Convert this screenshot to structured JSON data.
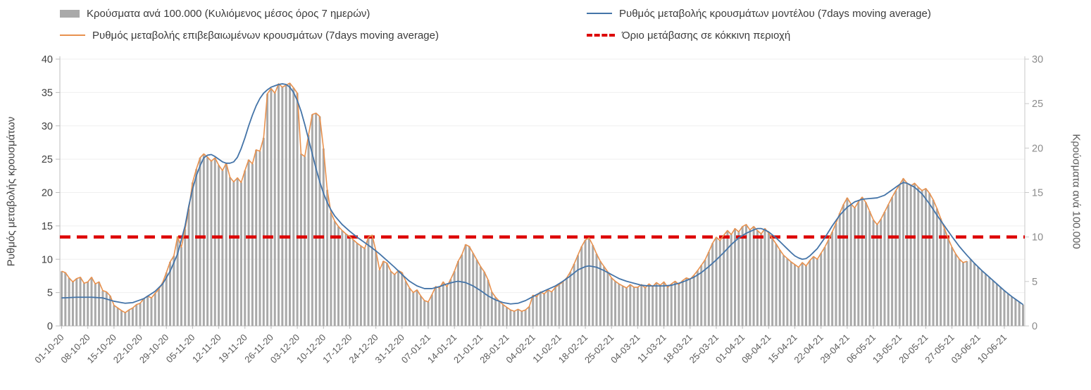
{
  "legend": {
    "items": [
      {
        "id": "bars",
        "label": "Κρούσματα ανά 100.000 (Κυλιόμενος μέσος όρος 7 ημερών)",
        "swatch": "bar",
        "color": "#a9a9a9"
      },
      {
        "id": "model",
        "label": "Ρυθμός μεταβολής κρουσμάτων μοντέλου (7days moving average)",
        "swatch": "line",
        "color": "#4474a8"
      },
      {
        "id": "confirmed",
        "label": "Ρυθμός μεταβολής επιβεβαιωμένων κρουσμάτων (7days moving average)",
        "swatch": "line",
        "color": "#e8914e"
      },
      {
        "id": "threshold",
        "label": "Όριο μετάβασης σε κόκκινη περιοχή",
        "swatch": "dash",
        "color": "#dd0000"
      }
    ]
  },
  "chart_data": {
    "type": "combo-bar-line",
    "grid": "horizontal-faint",
    "left_axis": {
      "label": "Ρυθμός μεταβολής κρουσμάτων",
      "min": 0,
      "max": 40,
      "ticks": [
        0,
        5,
        10,
        15,
        20,
        25,
        30,
        35,
        40
      ]
    },
    "right_axis": {
      "label": "Κρούσματα ανά 100.000",
      "min": 0,
      "max": 30,
      "ticks": [
        0,
        5,
        10,
        15,
        20,
        25,
        30
      ]
    },
    "x_axis": {
      "unit": "days since 01-10-2020",
      "max_day": 257,
      "tick_step_days": 7,
      "tick_labels": [
        "01-10-20",
        "08-10-20",
        "15-10-20",
        "22-10-20",
        "29-10-20",
        "05-11-20",
        "12-11-20",
        "19-11-20",
        "26-11-20",
        "03-12-20",
        "10-12-20",
        "17-12-20",
        "24-12-20",
        "31-12-20",
        "07-01-21",
        "14-01-21",
        "21-01-21",
        "28-01-21",
        "04-02-21",
        "11-02-21",
        "18-02-21",
        "25-02-21",
        "04-03-21",
        "11-03-21",
        "18-03-21",
        "25-03-21",
        "01-04-21",
        "08-04-21",
        "15-04-21",
        "22-04-21",
        "29-04-21",
        "06-05-21",
        "13-05-21",
        "20-05-21",
        "27-05-21",
        "03-06-21",
        "10-06-21"
      ]
    },
    "threshold": {
      "label": "Όριο μετάβασης σε κόκκινη περιοχή",
      "axis": "right",
      "value": 10,
      "color": "#dd0000"
    },
    "series": [
      {
        "id": "bars",
        "name": "Κρούσματα ανά 100.000 (Κυλιόμενος μέσος όρος 7 ημερών)",
        "type": "bar",
        "axis": "right",
        "color": "#a9a9a9",
        "derive": {
          "note": "bar heights coincide with the confirmed-rate curve rescaled to the right axis, continuing along the model curve after the confirmed series ends",
          "sources": [
            "confirmed",
            "model"
          ],
          "switch_day": 242,
          "scale": 0.75
        }
      },
      {
        "id": "confirmed",
        "name": "Ρυθμός μεταβολής επιβεβαιωμένων κρουσμάτων (7days moving average)",
        "type": "line",
        "axis": "left",
        "color": "#e8914e",
        "start_day": 0,
        "daily_values": [
          8.2,
          8.0,
          7.2,
          6.6,
          7.1,
          7.3,
          6.4,
          6.6,
          7.3,
          6.3,
          6.6,
          5.3,
          5.1,
          4.5,
          3.1,
          2.7,
          2.3,
          2.0,
          2.4,
          2.7,
          3.2,
          3.4,
          4.1,
          4.5,
          4.2,
          4.9,
          5.5,
          6.5,
          8.0,
          9.6,
          10.5,
          13.4,
          11.8,
          14.5,
          17.5,
          21.5,
          23.5,
          25.2,
          25.8,
          25.3,
          24.7,
          25.2,
          24.1,
          23.3,
          24.4,
          22.3,
          21.6,
          22.2,
          21.5,
          23.3,
          24.9,
          24.3,
          26.4,
          26.2,
          28.2,
          34.8,
          35.6,
          34.9,
          36.3,
          35.8,
          36.1,
          36.4,
          35.7,
          34.9,
          25.8,
          25.4,
          28.6,
          31.7,
          31.9,
          31.4,
          26.6,
          20.4,
          17.0,
          15.7,
          14.9,
          14.3,
          13.8,
          13.4,
          12.9,
          12.4,
          12.0,
          11.6,
          13.3,
          13.6,
          11.3,
          8.4,
          9.7,
          9.4,
          8.2,
          7.7,
          8.3,
          8.0,
          6.7,
          5.7,
          5.0,
          5.4,
          4.5,
          3.8,
          3.6,
          4.7,
          5.9,
          5.7,
          6.6,
          5.9,
          7.0,
          8.2,
          9.7,
          10.7,
          12.2,
          11.9,
          10.9,
          9.9,
          8.9,
          8.1,
          6.9,
          5.1,
          4.3,
          3.7,
          3.2,
          2.8,
          2.4,
          2.2,
          2.5,
          2.2,
          2.4,
          2.9,
          4.6,
          4.4,
          5.1,
          4.8,
          5.4,
          5.1,
          5.8,
          6.2,
          6.6,
          7.2,
          8.1,
          9.3,
          10.6,
          11.9,
          12.9,
          13.2,
          12.1,
          10.8,
          9.7,
          8.9,
          8.1,
          7.2,
          6.7,
          6.3,
          6.0,
          5.7,
          6.2,
          5.8,
          5.8,
          6.2,
          5.7,
          6.3,
          5.9,
          6.5,
          6.1,
          6.6,
          5.8,
          6.3,
          6.7,
          6.2,
          6.8,
          7.2,
          7.0,
          7.6,
          8.3,
          9.1,
          9.9,
          11.1,
          12.4,
          13.3,
          12.8,
          13.6,
          14.3,
          13.7,
          14.6,
          14.1,
          14.9,
          15.2,
          14.4,
          14.9,
          14.3,
          13.8,
          14.6,
          13.9,
          13.1,
          12.3,
          11.4,
          10.6,
          10.1,
          9.6,
          9.2,
          8.8,
          9.5,
          9.0,
          9.8,
          10.4,
          10.0,
          10.9,
          11.8,
          12.9,
          14.1,
          15.4,
          16.9,
          18.2,
          19.2,
          18.3,
          17.7,
          18.6,
          19.3,
          18.5,
          17.2,
          15.9,
          15.2,
          16.0,
          17.1,
          18.2,
          19.3,
          20.3,
          21.2,
          22.1,
          21.4,
          21.0,
          21.4,
          20.8,
          20.3,
          20.6,
          19.9,
          18.9,
          17.6,
          16.1,
          14.6,
          13.1,
          11.8,
          10.8,
          10.0,
          9.5,
          9.7
        ]
      },
      {
        "id": "model",
        "name": "Ρυθμός μεταβολής κρουσμάτων μοντέλου (7days moving average)",
        "type": "line",
        "axis": "left",
        "color": "#4474a8",
        "points": [
          [
            0,
            4.2
          ],
          [
            4,
            4.3
          ],
          [
            8,
            4.3
          ],
          [
            11,
            4.2
          ],
          [
            14,
            3.7
          ],
          [
            17,
            3.4
          ],
          [
            19,
            3.5
          ],
          [
            22,
            4.1
          ],
          [
            25,
            5.2
          ],
          [
            27,
            6.3
          ],
          [
            29,
            8.2
          ],
          [
            31,
            10.8
          ],
          [
            33,
            15.0
          ],
          [
            34,
            18.0
          ],
          [
            35,
            20.5
          ],
          [
            36,
            22.5
          ],
          [
            37,
            24.0
          ],
          [
            38,
            25.2
          ],
          [
            39,
            25.6
          ],
          [
            40,
            25.7
          ],
          [
            41,
            25.4
          ],
          [
            42,
            25.0
          ],
          [
            43,
            24.6
          ],
          [
            44,
            24.4
          ],
          [
            45,
            24.4
          ],
          [
            46,
            24.6
          ],
          [
            47,
            25.3
          ],
          [
            48,
            26.6
          ],
          [
            49,
            28.2
          ],
          [
            50,
            30.0
          ],
          [
            51,
            31.6
          ],
          [
            52,
            33.0
          ],
          [
            53,
            34.1
          ],
          [
            54,
            34.9
          ],
          [
            55,
            35.4
          ],
          [
            56,
            35.8
          ],
          [
            57,
            36.0
          ],
          [
            58,
            36.2
          ],
          [
            59,
            36.3
          ],
          [
            60,
            36.2
          ],
          [
            61,
            35.8
          ],
          [
            62,
            35.0
          ],
          [
            63,
            33.8
          ],
          [
            64,
            32.2
          ],
          [
            65,
            30.2
          ],
          [
            66,
            28.0
          ],
          [
            67,
            25.8
          ],
          [
            68,
            23.6
          ],
          [
            69,
            21.6
          ],
          [
            70,
            19.9
          ],
          [
            71,
            18.5
          ],
          [
            72,
            17.4
          ],
          [
            73,
            16.5
          ],
          [
            75,
            15.2
          ],
          [
            77,
            14.2
          ],
          [
            79,
            13.3
          ],
          [
            81,
            12.5
          ],
          [
            83,
            11.7
          ],
          [
            85,
            10.8
          ],
          [
            87,
            9.8
          ],
          [
            89,
            8.8
          ],
          [
            91,
            7.7
          ],
          [
            93,
            6.7
          ],
          [
            95,
            6.0
          ],
          [
            97,
            5.6
          ],
          [
            99,
            5.6
          ],
          [
            101,
            5.9
          ],
          [
            103,
            6.3
          ],
          [
            105,
            6.6
          ],
          [
            106,
            6.7
          ],
          [
            108,
            6.5
          ],
          [
            110,
            6.0
          ],
          [
            112,
            5.3
          ],
          [
            114,
            4.5
          ],
          [
            116,
            3.9
          ],
          [
            118,
            3.5
          ],
          [
            120,
            3.3
          ],
          [
            122,
            3.4
          ],
          [
            124,
            3.8
          ],
          [
            126,
            4.4
          ],
          [
            128,
            5.0
          ],
          [
            130,
            5.5
          ],
          [
            132,
            6.0
          ],
          [
            134,
            6.7
          ],
          [
            136,
            7.5
          ],
          [
            138,
            8.4
          ],
          [
            140,
            8.9
          ],
          [
            141,
            9.0
          ],
          [
            143,
            8.8
          ],
          [
            145,
            8.3
          ],
          [
            147,
            7.7
          ],
          [
            149,
            7.1
          ],
          [
            151,
            6.7
          ],
          [
            153,
            6.4
          ],
          [
            155,
            6.1
          ],
          [
            157,
            6.0
          ],
          [
            159,
            6.0
          ],
          [
            161,
            6.0
          ],
          [
            163,
            6.1
          ],
          [
            165,
            6.4
          ],
          [
            167,
            6.8
          ],
          [
            169,
            7.3
          ],
          [
            171,
            8.0
          ],
          [
            173,
            8.9
          ],
          [
            175,
            9.9
          ],
          [
            177,
            11.0
          ],
          [
            179,
            12.2
          ],
          [
            181,
            13.2
          ],
          [
            183,
            13.9
          ],
          [
            185,
            14.4
          ],
          [
            186,
            14.6
          ],
          [
            187,
            14.6
          ],
          [
            188,
            14.4
          ],
          [
            189,
            14.1
          ],
          [
            191,
            13.2
          ],
          [
            193,
            12.1
          ],
          [
            195,
            11.0
          ],
          [
            196,
            10.5
          ],
          [
            197,
            10.2
          ],
          [
            198,
            10.0
          ],
          [
            199,
            10.1
          ],
          [
            200,
            10.5
          ],
          [
            202,
            11.6
          ],
          [
            204,
            13.2
          ],
          [
            206,
            15.0
          ],
          [
            208,
            16.6
          ],
          [
            210,
            17.8
          ],
          [
            212,
            18.6
          ],
          [
            214,
            19.0
          ],
          [
            216,
            19.1
          ],
          [
            218,
            19.2
          ],
          [
            220,
            19.6
          ],
          [
            222,
            20.4
          ],
          [
            224,
            21.2
          ],
          [
            225,
            21.5
          ],
          [
            226,
            21.4
          ],
          [
            228,
            20.8
          ],
          [
            230,
            19.8
          ],
          [
            232,
            18.3
          ],
          [
            234,
            16.6
          ],
          [
            236,
            15.0
          ],
          [
            238,
            13.4
          ],
          [
            240,
            11.9
          ],
          [
            242,
            10.6
          ],
          [
            244,
            9.4
          ],
          [
            246,
            8.3
          ],
          [
            248,
            7.3
          ],
          [
            250,
            6.3
          ],
          [
            252,
            5.3
          ],
          [
            254,
            4.4
          ],
          [
            256,
            3.6
          ],
          [
            257,
            3.2
          ]
        ]
      }
    ]
  }
}
